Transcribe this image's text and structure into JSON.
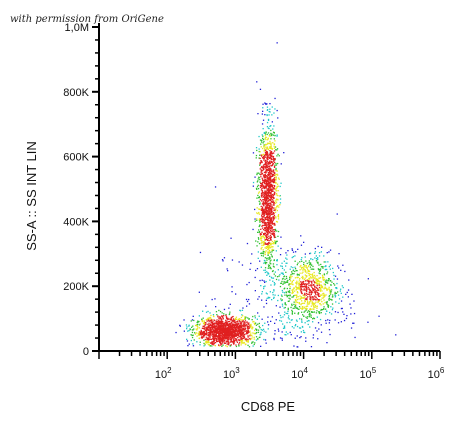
{
  "credit": "with permission from OriGene",
  "chart_data": {
    "type": "scatter",
    "title": "",
    "xlabel": "CD68 PE",
    "ylabel": "SS-A :: SS INT LIN",
    "x_scale": "log",
    "xlim": [
      10,
      1000000
    ],
    "ylim": [
      0,
      1000000
    ],
    "x_ticks": [
      {
        "value": 100,
        "base": "10",
        "exp": "2"
      },
      {
        "value": 1000,
        "base": "10",
        "exp": "3"
      },
      {
        "value": 10000,
        "base": "10",
        "exp": "4"
      },
      {
        "value": 100000,
        "base": "10",
        "exp": "5"
      },
      {
        "value": 1000000,
        "base": "10",
        "exp": "6"
      }
    ],
    "y_ticks": [
      {
        "value": 0,
        "label": "0"
      },
      {
        "value": 200000,
        "label": "200K"
      },
      {
        "value": 400000,
        "label": "400K"
      },
      {
        "value": 600000,
        "label": "600K"
      },
      {
        "value": 800000,
        "label": "800K"
      },
      {
        "value": 1000000,
        "label": "1,0M"
      }
    ],
    "colors": {
      "sparse": "#2020d8",
      "medium": "#20c8c8",
      "dense": "#30c030",
      "high": "#e8e820",
      "peak": "#e02020",
      "axis": "#000000"
    },
    "populations": [
      {
        "center_x": 700,
        "center_y": 60000,
        "spread_log_x": 0.22,
        "spread_y": 22000,
        "count": 1500
      },
      {
        "center_x": 3000,
        "center_y": 480000,
        "spread_log_x": 0.07,
        "spread_y": 110000,
        "count": 1400
      },
      {
        "center_x": 12000,
        "center_y": 190000,
        "spread_log_x": 0.22,
        "spread_y": 55000,
        "count": 800
      },
      {
        "center_x": 5000,
        "center_y": 150000,
        "spread_log_x": 0.5,
        "spread_y": 100000,
        "count": 300
      }
    ]
  }
}
